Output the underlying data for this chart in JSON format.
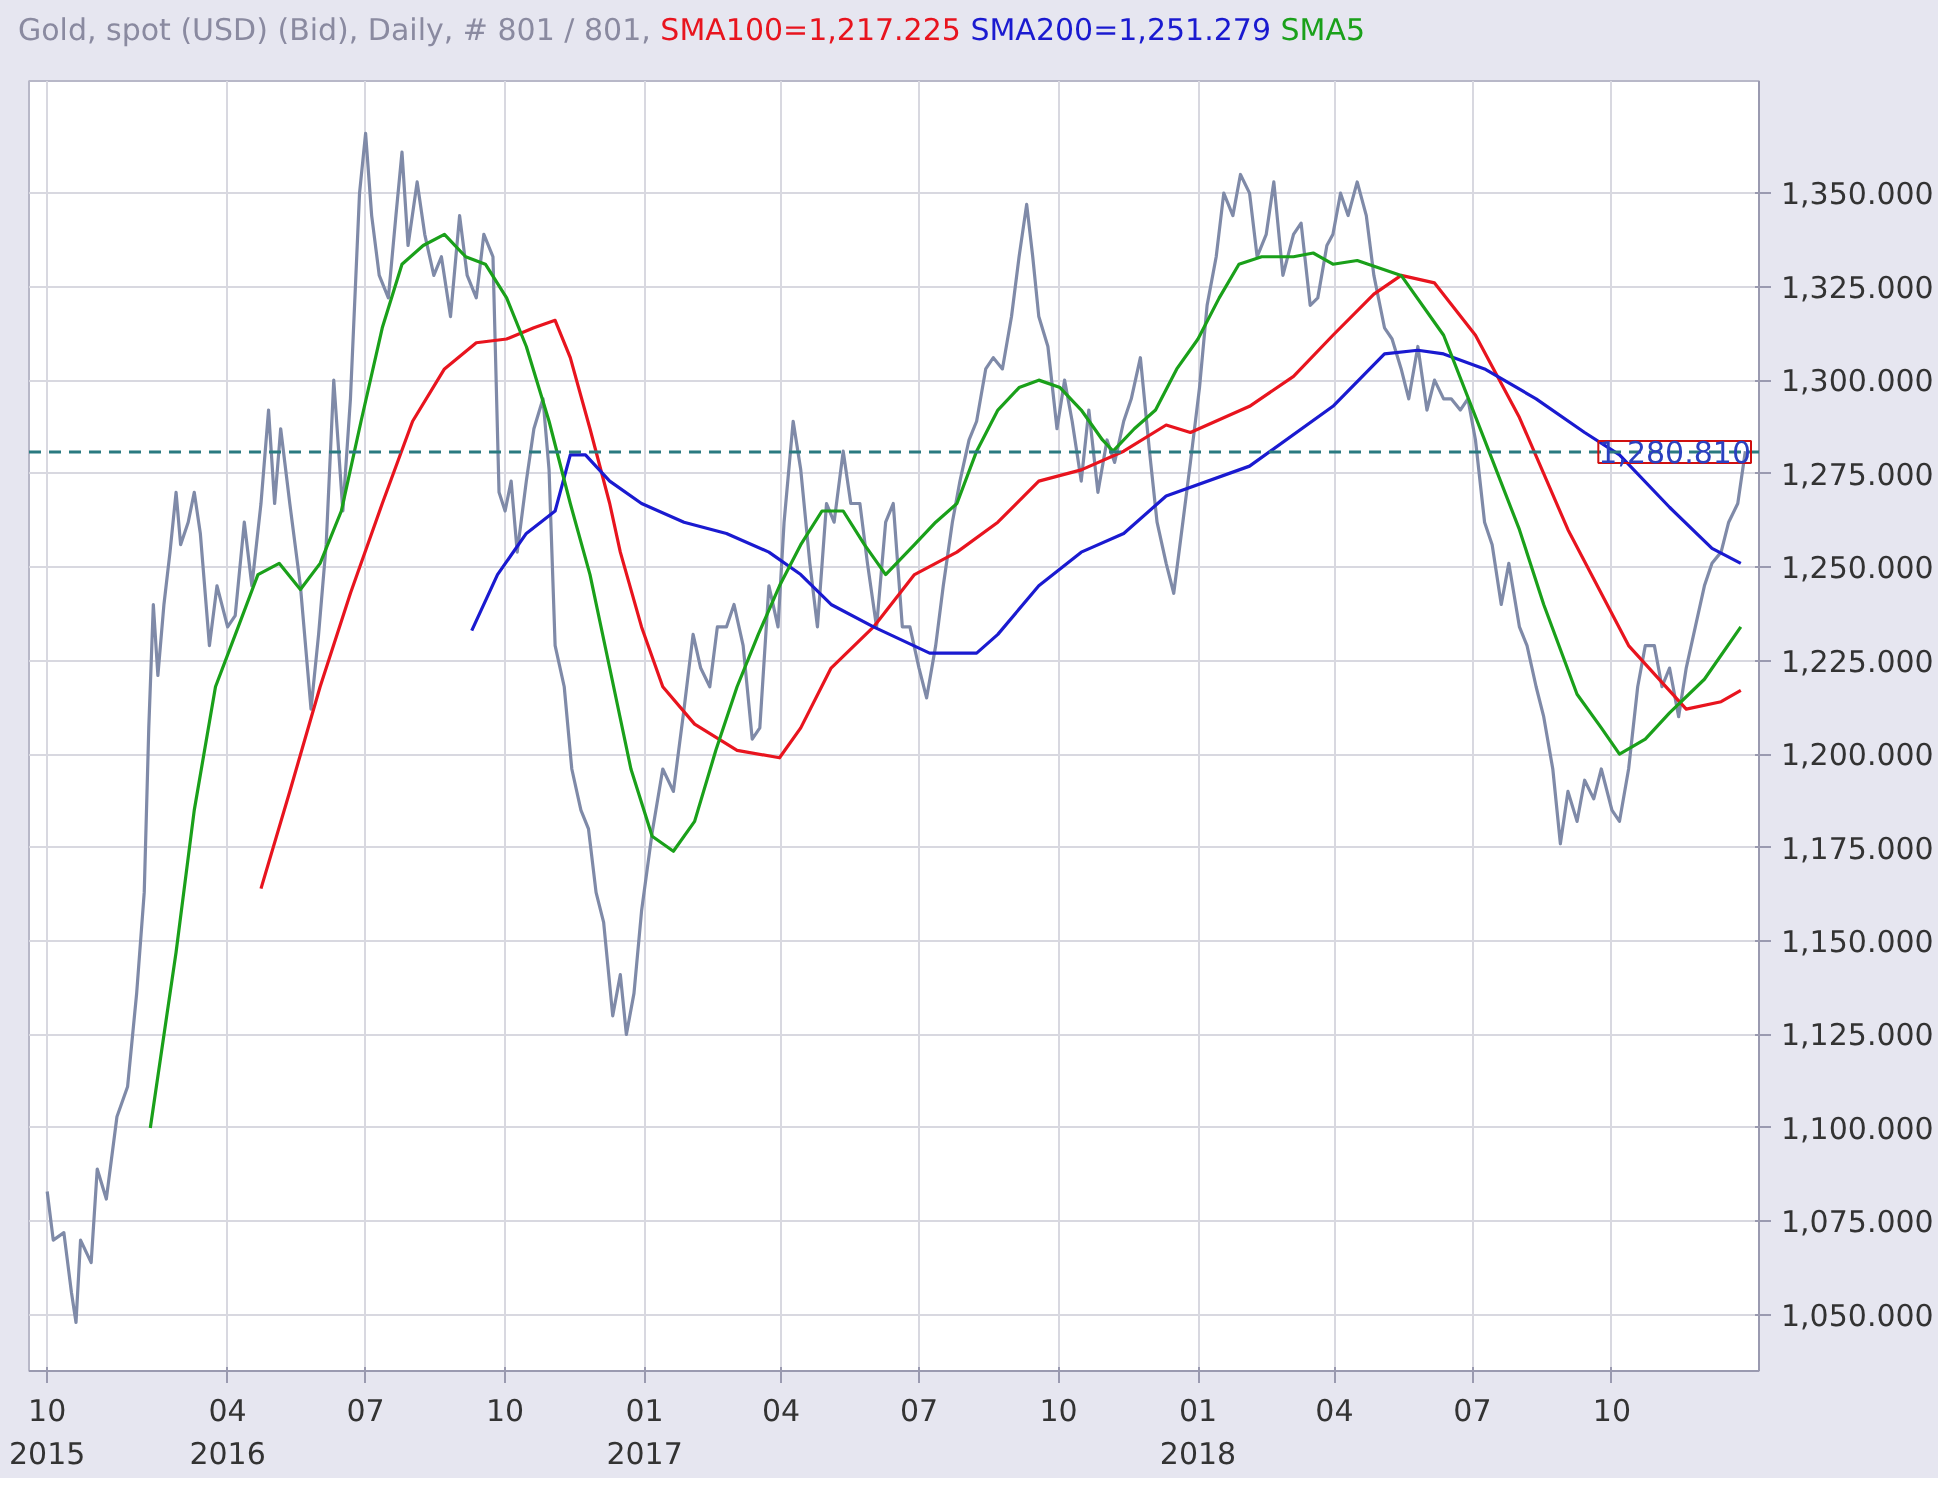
{
  "chart_data": {
    "type": "line",
    "title": "Gold, spot (USD) (Bid), Daily, # 801 / 801,",
    "legend": "top",
    "grid": true,
    "line_style": "solid",
    "xlim": [
      "2015-11-22",
      "2019-01-06"
    ],
    "ylim": [
      1035,
      1380
    ],
    "xticks": [
      {
        "value": "2015-12-04",
        "label": "10\n2015"
      },
      {
        "value": "2016-04-01",
        "label": "04\n2016"
      },
      {
        "value": "2016-07-01",
        "label": "07"
      },
      {
        "value": "2016-10-01",
        "label": "10"
      },
      {
        "value": "2017-01-01",
        "label": "01\n2017"
      },
      {
        "value": "2017-04-01",
        "label": "04"
      },
      {
        "value": "2017-07-01",
        "label": "07"
      },
      {
        "value": "2017-10-01",
        "label": "10"
      },
      {
        "value": "2018-01-01",
        "label": "01\n2018"
      },
      {
        "value": "2018-04-01",
        "label": "04"
      },
      {
        "value": "2018-07-01",
        "label": "07"
      },
      {
        "value": "2018-10-01",
        "label": "10"
      }
    ],
    "yticks": [
      {
        "value": 1050,
        "label": "1,050.000"
      },
      {
        "value": 1075,
        "label": "1,075.000"
      },
      {
        "value": 1100,
        "label": "1,100.000"
      },
      {
        "value": 1125,
        "label": "1,125.000"
      },
      {
        "value": 1150,
        "label": "1,150.000"
      },
      {
        "value": 1175,
        "label": "1,175.000"
      },
      {
        "value": 1200,
        "label": "1,200.000"
      },
      {
        "value": 1225,
        "label": "1,225.000"
      },
      {
        "value": 1250,
        "label": "1,250.000"
      },
      {
        "value": 1275,
        "label": "1,275.000"
      },
      {
        "value": 1300,
        "label": "1,300.000"
      },
      {
        "value": 1325,
        "label": "1,325.000"
      },
      {
        "value": 1350,
        "label": "1,350.000"
      }
    ],
    "ref_lines": [
      {
        "axis": "y",
        "value": 1280.81,
        "label": "1,280.810",
        "color": "#2a7a80",
        "line_style": "dashed"
      }
    ],
    "series": [
      {
        "color": "#7f8aa8",
        "x": [
          "2015-12-04",
          "2015-12-08",
          "2015-12-15",
          "2015-12-20",
          "2015-12-23",
          "2015-12-26",
          "2016-01-02",
          "2016-01-06",
          "2016-01-12",
          "2016-01-19",
          "2016-01-26",
          "2016-02-01",
          "2016-02-06",
          "2016-02-09",
          "2016-02-12",
          "2016-02-15",
          "2016-02-19",
          "2016-02-23",
          "2016-02-27",
          "2016-03-01",
          "2016-03-06",
          "2016-03-10",
          "2016-03-14",
          "2016-03-20",
          "2016-03-25",
          "2016-04-01",
          "2016-04-06",
          "2016-04-12",
          "2016-04-17",
          "2016-04-23",
          "2016-04-28",
          "2016-05-02",
          "2016-05-06",
          "2016-05-12",
          "2016-05-19",
          "2016-05-26",
          "2016-05-31",
          "2016-06-05",
          "2016-06-10",
          "2016-06-16",
          "2016-06-21",
          "2016-06-27",
          "2016-07-01",
          "2016-07-05",
          "2016-07-10",
          "2016-07-16",
          "2016-07-21",
          "2016-07-25",
          "2016-07-29",
          "2016-08-04",
          "2016-08-09",
          "2016-08-15",
          "2016-08-20",
          "2016-08-26",
          "2016-09-01",
          "2016-09-06",
          "2016-09-12",
          "2016-09-17",
          "2016-09-23",
          "2016-09-27",
          "2016-10-01",
          "2016-10-05",
          "2016-10-09",
          "2016-10-15",
          "2016-10-20",
          "2016-10-26",
          "2016-10-30",
          "2016-11-03",
          "2016-11-09",
          "2016-11-14",
          "2016-11-20",
          "2016-11-25",
          "2016-11-30",
          "2016-12-05",
          "2016-12-11",
          "2016-12-16",
          "2016-12-20",
          "2016-12-25",
          "2016-12-30",
          "2017-01-06",
          "2017-01-13",
          "2017-01-20",
          "2017-01-27",
          "2017-02-02",
          "2017-02-07",
          "2017-02-13",
          "2017-02-18",
          "2017-02-24",
          "2017-03-01",
          "2017-03-07",
          "2017-03-13",
          "2017-03-18",
          "2017-03-24",
          "2017-03-30",
          "2017-04-03",
          "2017-04-09",
          "2017-04-14",
          "2017-04-20",
          "2017-04-25",
          "2017-05-01",
          "2017-05-06",
          "2017-05-12",
          "2017-05-17",
          "2017-05-23",
          "2017-05-28",
          "2017-06-03",
          "2017-06-09",
          "2017-06-14",
          "2017-06-20",
          "2017-06-25",
          "2017-07-01",
          "2017-07-06",
          "2017-07-12",
          "2017-07-17",
          "2017-07-23",
          "2017-07-28",
          "2017-08-03",
          "2017-08-08",
          "2017-08-14",
          "2017-08-19",
          "2017-08-25",
          "2017-08-31",
          "2017-09-05",
          "2017-09-10",
          "2017-09-14",
          "2017-09-18",
          "2017-09-24",
          "2017-09-30",
          "2017-10-05",
          "2017-10-10",
          "2017-10-16",
          "2017-10-21",
          "2017-10-27",
          "2017-11-02",
          "2017-11-07",
          "2017-11-13",
          "2017-11-18",
          "2017-11-24",
          "2017-11-30",
          "2017-12-05",
          "2017-12-11",
          "2017-12-16",
          "2017-12-22",
          "2017-12-27",
          "2018-01-02",
          "2018-01-07",
          "2018-01-13",
          "2018-01-18",
          "2018-01-24",
          "2018-01-29",
          "2018-02-04",
          "2018-02-09",
          "2018-02-15",
          "2018-02-20",
          "2018-02-26",
          "2018-03-05",
          "2018-03-10",
          "2018-03-16",
          "2018-03-21",
          "2018-03-27",
          "2018-03-31",
          "2018-04-05",
          "2018-04-10",
          "2018-04-16",
          "2018-04-22",
          "2018-04-27",
          "2018-05-04",
          "2018-05-09",
          "2018-05-15",
          "2018-05-20",
          "2018-05-26",
          "2018-06-01",
          "2018-06-06",
          "2018-06-12",
          "2018-06-17",
          "2018-06-23",
          "2018-06-28",
          "2018-07-03",
          "2018-07-09",
          "2018-07-14",
          "2018-07-20",
          "2018-07-25",
          "2018-08-01",
          "2018-08-06",
          "2018-08-12",
          "2018-08-17",
          "2018-08-23",
          "2018-08-28",
          "2018-09-02",
          "2018-09-08",
          "2018-09-13",
          "2018-09-19",
          "2018-09-24",
          "2018-10-01",
          "2018-10-06",
          "2018-10-12",
          "2018-10-18",
          "2018-10-23",
          "2018-10-29",
          "2018-11-03",
          "2018-11-08",
          "2018-11-14",
          "2018-11-19",
          "2018-11-25",
          "2018-12-01",
          "2018-12-06",
          "2018-12-12",
          "2018-12-17",
          "2018-12-23",
          "2018-12-28"
        ],
        "values": [
          1083,
          1070,
          1072,
          1056,
          1048,
          1070,
          1064,
          1089,
          1081,
          1103,
          1111,
          1136,
          1163,
          1207,
          1240,
          1221,
          1240,
          1254,
          1270,
          1256,
          1262,
          1270,
          1259,
          1229,
          1245,
          1234,
          1237,
          1262,
          1245,
          1267,
          1292,
          1267,
          1287,
          1267,
          1245,
          1212,
          1232,
          1256,
          1300,
          1265,
          1295,
          1350,
          1366,
          1344,
          1328,
          1322,
          1344,
          1361,
          1336,
          1353,
          1339,
          1328,
          1333,
          1317,
          1344,
          1328,
          1322,
          1339,
          1333,
          1270,
          1265,
          1273,
          1254,
          1273,
          1287,
          1295,
          1276,
          1229,
          1218,
          1196,
          1185,
          1180,
          1163,
          1155,
          1130,
          1141,
          1125,
          1136,
          1158,
          1179,
          1196,
          1190,
          1212,
          1232,
          1223,
          1218,
          1234,
          1234,
          1240,
          1229,
          1204,
          1207,
          1245,
          1234,
          1262,
          1289,
          1276,
          1251,
          1234,
          1267,
          1262,
          1281,
          1267,
          1267,
          1251,
          1234,
          1262,
          1267,
          1234,
          1234,
          1223,
          1215,
          1229,
          1245,
          1262,
          1273,
          1284,
          1289,
          1303,
          1306,
          1303,
          1317,
          1333,
          1347,
          1333,
          1317,
          1309,
          1287,
          1300,
          1289,
          1273,
          1292,
          1270,
          1284,
          1278,
          1289,
          1295,
          1306,
          1281,
          1262,
          1251,
          1243,
          1262,
          1278,
          1298,
          1320,
          1333,
          1350,
          1344,
          1355,
          1350,
          1333,
          1339,
          1353,
          1328,
          1339,
          1342,
          1320,
          1322,
          1336,
          1339,
          1350,
          1344,
          1353,
          1344,
          1328,
          1314,
          1311,
          1303,
          1295,
          1309,
          1292,
          1300,
          1295,
          1295,
          1292,
          1295,
          1284,
          1262,
          1256,
          1240,
          1251,
          1234,
          1229,
          1218,
          1210,
          1196,
          1176,
          1190,
          1182,
          1193,
          1188,
          1196,
          1185,
          1182,
          1196,
          1218,
          1229,
          1229,
          1218,
          1223,
          1210,
          1223,
          1234,
          1245,
          1251,
          1254,
          1262,
          1267,
          1281
        ]
      },
      {
        "name": "SMA100=1,217.225",
        "color": "#e8141e",
        "x": [
          "2016-04-23",
          "2016-05-12",
          "2016-06-01",
          "2016-06-21",
          "2016-07-12",
          "2016-08-01",
          "2016-08-22",
          "2016-09-12",
          "2016-10-02",
          "2016-10-20",
          "2016-11-03",
          "2016-11-13",
          "2016-11-26",
          "2016-12-09",
          "2016-12-16",
          "2016-12-30",
          "2017-01-13",
          "2017-02-03",
          "2017-03-03",
          "2017-03-31",
          "2017-04-14",
          "2017-05-04",
          "2017-06-01",
          "2017-06-28",
          "2017-07-26",
          "2017-08-22",
          "2017-09-18",
          "2017-10-16",
          "2017-11-13",
          "2017-12-11",
          "2017-12-27",
          "2018-02-04",
          "2018-03-05",
          "2018-03-31",
          "2018-04-27",
          "2018-05-15",
          "2018-06-06",
          "2018-07-03",
          "2018-08-01",
          "2018-09-02",
          "2018-10-12",
          "2018-11-19",
          "2018-12-12",
          "2018-12-25"
        ],
        "values": [
          1164,
          1190,
          1218,
          1243,
          1267,
          1289,
          1303,
          1310,
          1311,
          1314,
          1316,
          1306,
          1287,
          1267,
          1254,
          1234,
          1218,
          1208,
          1201,
          1199,
          1207,
          1223,
          1234,
          1248,
          1254,
          1262,
          1273,
          1276,
          1281,
          1288,
          1286,
          1293,
          1301,
          1312,
          1323,
          1328,
          1326,
          1312,
          1290,
          1260,
          1229,
          1212,
          1214,
          1217
        ]
      },
      {
        "name": "SMA200=1,251.279",
        "color": "#1a1ad0",
        "x": [
          "2016-09-09",
          "2016-09-26",
          "2016-10-15",
          "2016-11-03",
          "2016-11-13",
          "2016-11-23",
          "2016-12-09",
          "2016-12-30",
          "2017-01-27",
          "2017-02-24",
          "2017-03-24",
          "2017-04-14",
          "2017-05-04",
          "2017-06-01",
          "2017-07-08",
          "2017-08-08",
          "2017-08-22",
          "2017-09-18",
          "2017-10-16",
          "2017-11-13",
          "2017-12-11",
          "2018-02-04",
          "2018-03-31",
          "2018-05-04",
          "2018-05-26",
          "2018-06-12",
          "2018-07-09",
          "2018-08-12",
          "2018-09-13",
          "2018-10-06",
          "2018-11-08",
          "2018-12-06",
          "2018-12-25"
        ],
        "values": [
          1233,
          1248,
          1259,
          1265,
          1280,
          1280,
          1273,
          1267,
          1262,
          1259,
          1254,
          1248,
          1240,
          1234,
          1227,
          1227,
          1232,
          1245,
          1254,
          1259,
          1269,
          1277,
          1293,
          1307,
          1308,
          1307,
          1303,
          1295,
          1286,
          1280,
          1266,
          1255,
          1251
        ]
      },
      {
        "name": "SMA5",
        "color": "#1aa01a",
        "x": [
          "2016-02-10",
          "2016-02-27",
          "2016-03-10",
          "2016-03-24",
          "2016-04-08",
          "2016-04-21",
          "2016-05-05",
          "2016-05-19",
          "2016-06-01",
          "2016-06-15",
          "2016-06-28",
          "2016-07-12",
          "2016-07-25",
          "2016-08-08",
          "2016-08-22",
          "2016-09-05",
          "2016-09-18",
          "2016-10-02",
          "2016-10-15",
          "2016-10-30",
          "2016-11-13",
          "2016-11-26",
          "2016-12-09",
          "2016-12-23",
          "2017-01-06",
          "2017-01-20",
          "2017-02-03",
          "2017-02-17",
          "2017-03-03",
          "2017-03-17",
          "2017-03-31",
          "2017-04-14",
          "2017-04-28",
          "2017-05-12",
          "2017-05-26",
          "2017-06-09",
          "2017-06-28",
          "2017-07-12",
          "2017-07-26",
          "2017-08-08",
          "2017-08-22",
          "2017-09-05",
          "2017-09-18",
          "2017-10-02",
          "2017-10-16",
          "2017-10-30",
          "2017-11-06",
          "2017-11-20",
          "2017-12-04",
          "2017-12-18",
          "2018-01-01",
          "2018-01-15",
          "2018-01-28",
          "2018-02-12",
          "2018-03-05",
          "2018-03-18",
          "2018-03-31",
          "2018-04-16",
          "2018-05-15",
          "2018-06-12",
          "2018-07-09",
          "2018-08-01",
          "2018-08-17",
          "2018-09-08",
          "2018-09-24",
          "2018-10-06",
          "2018-10-23",
          "2018-11-08",
          "2018-12-01",
          "2018-12-25"
        ],
        "values": [
          1100,
          1147,
          1185,
          1218,
          1234,
          1248,
          1251,
          1244,
          1251,
          1265,
          1289,
          1314,
          1331,
          1336,
          1339,
          1333,
          1331,
          1322,
          1309,
          1289,
          1267,
          1248,
          1223,
          1196,
          1178,
          1174,
          1182,
          1201,
          1218,
          1232,
          1245,
          1256,
          1265,
          1265,
          1256,
          1248,
          1256,
          1262,
          1267,
          1281,
          1292,
          1298,
          1300,
          1298,
          1292,
          1284,
          1281,
          1287,
          1292,
          1303,
          1311,
          1322,
          1331,
          1333,
          1333,
          1334,
          1331,
          1332,
          1328,
          1312,
          1284,
          1260,
          1240,
          1216,
          1207,
          1200,
          1204,
          1211,
          1220,
          1234
        ]
      }
    ]
  }
}
